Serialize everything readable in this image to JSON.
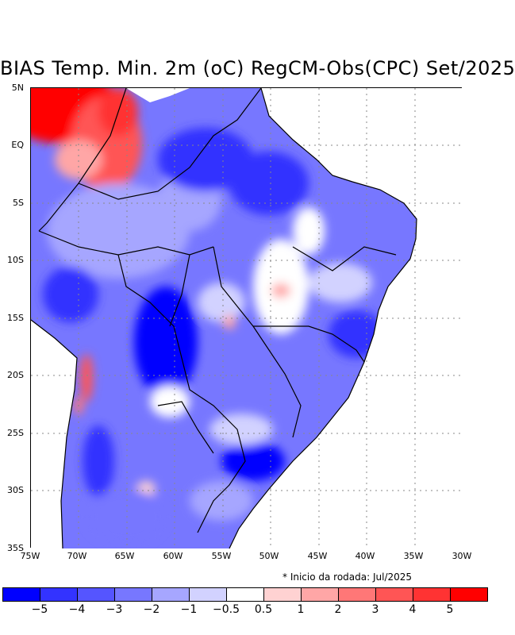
{
  "title": "BIAS Temp. Min. 2m (oC) RegCM-Obs(CPC) Set/2025",
  "note": "* Inicio da rodada: Jul/2025",
  "lat_labels": [
    "5N",
    "EQ",
    "5S",
    "10S",
    "15S",
    "20S",
    "25S",
    "30S",
    "35S"
  ],
  "lon_labels": [
    "75W",
    "70W",
    "65W",
    "60W",
    "55W",
    "50W",
    "45W",
    "40W",
    "35W",
    "30W"
  ],
  "colorbar": {
    "colors": [
      "#0000ff",
      "#3333ff",
      "#5555ff",
      "#7777ff",
      "#a6a6ff",
      "#d2d2ff",
      "#ffffff",
      "#ffd2d2",
      "#ffa6a6",
      "#ff7777",
      "#ff5555",
      "#ff3333",
      "#ff0000"
    ],
    "labels": [
      "−5",
      "−4",
      "−3",
      "−2",
      "−1",
      "−0.5",
      "0.5",
      "1",
      "2",
      "3",
      "4",
      "5"
    ]
  }
}
